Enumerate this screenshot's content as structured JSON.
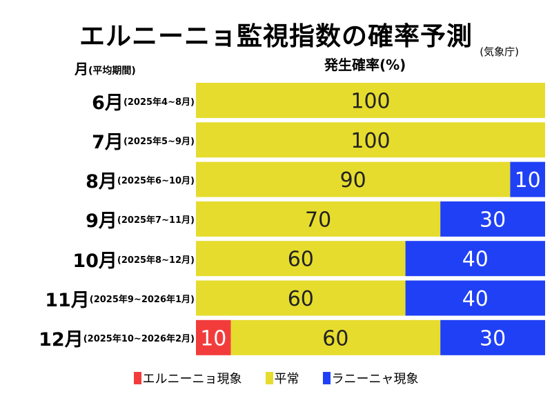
{
  "chart_data": {
    "type": "bar",
    "orientation": "horizontal",
    "stacked": true,
    "title": "エルニーニョ監視指数の確率予測",
    "source": "(気象庁)",
    "xlabel": "発生確率(%)",
    "ylabel": "月",
    "ylabel_sub": "(平均期間)",
    "xlim": [
      0,
      100
    ],
    "categories": [
      {
        "month": "6月",
        "period": "(2025年4~8月)"
      },
      {
        "month": "7月",
        "period": "(2025年5~9月)"
      },
      {
        "month": "8月",
        "period": "(2025年6~10月)"
      },
      {
        "month": "9月",
        "period": "(2025年7~11月)"
      },
      {
        "month": "10月",
        "period": "(2025年8~12月)"
      },
      {
        "month": "11月",
        "period": "(2025年9~2026年1月)"
      },
      {
        "month": "12月",
        "period": "(2025年10~2026年2月)"
      }
    ],
    "series": [
      {
        "name": "エルニーニョ現象",
        "color": "#f23c3c",
        "label_color": "#ffffff",
        "values": [
          0,
          0,
          0,
          0,
          0,
          0,
          10
        ]
      },
      {
        "name": "平常",
        "color": "#e6dc2e",
        "label_color": "#222222",
        "values": [
          100,
          100,
          90,
          70,
          60,
          60,
          60
        ]
      },
      {
        "name": "ラニーニャ現象",
        "color": "#2040f5",
        "label_color": "#ffffff",
        "values": [
          0,
          0,
          10,
          30,
          40,
          40,
          30
        ]
      }
    ],
    "legend_position": "bottom"
  }
}
